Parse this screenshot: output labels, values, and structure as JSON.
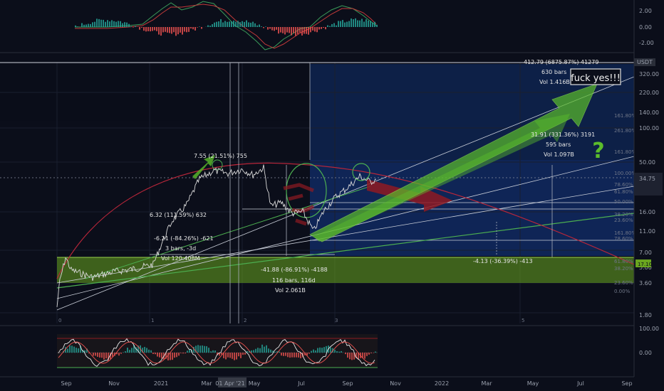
{
  "chart_data": {
    "type": "line",
    "price_axis": {
      "scale": "log",
      "ticks": [
        "320.00",
        "220.00",
        "140.00",
        "100.00",
        "50.00",
        "32.00",
        "16.00",
        "11.00",
        "7.00",
        "5.00",
        "3.60",
        "1.80"
      ]
    },
    "osc_top_axis": {
      "ticks": [
        "2.00",
        "0.00",
        "-2.00"
      ]
    },
    "osc_bottom_axis": {
      "ticks": [
        "100.00",
        "0.00"
      ]
    },
    "time_axis": {
      "ticks": [
        "Sep",
        "Nov",
        "2021",
        "Mar",
        "01 Apr '21",
        "May",
        "Jul",
        "Sep",
        "Nov",
        "2022",
        "Mar",
        "May",
        "Jul",
        "Sep"
      ],
      "highlight": "01 Apr '21"
    },
    "bar_index_labels": [
      "0",
      "1",
      "2",
      "3",
      "5"
    ],
    "fib_levels": [
      "161.80%",
      "261.80%",
      "161.80%",
      "100.00%",
      "78.60%",
      "61.80%",
      "50.00%",
      "38.20%",
      "23.60%",
      "161.80%",
      "78.60%",
      "61.80%",
      "38.20%",
      "23.60%",
      "0.00%"
    ],
    "price_labels": [
      "17.10",
      "USDT",
      "34.75"
    ],
    "measurements": [
      {
        "range": "7.55 (21.51%) 755"
      },
      {
        "range": "6.32 (111.59%) 632"
      },
      {
        "range": "-6.21 (-84.26%) -621",
        "bars": "3 bars, -3d",
        "vol": "Vol 120.408M"
      },
      {
        "range": "-41.88 (-86.91%) -4188",
        "bars": "116 bars, 116d",
        "vol": "Vol 2.061B"
      },
      {
        "range": "-4.13 (-36.39%) -413"
      },
      {
        "range": "31.91 (331.36%) 3191",
        "bars": "595 bars",
        "vol": "Vol 1.097B"
      },
      {
        "range": "412.79 (6875.87%) 41279",
        "bars": "630 bars",
        "vol": "Vol 1.416B"
      }
    ],
    "annotations": {
      "callout": "fuck yes!!!",
      "question": "?"
    },
    "colors": {
      "background": "#0b0e1a",
      "projection_box": "#0e2350",
      "support_zone": "#6aa51f",
      "arrow": "#5bbd2b",
      "red_arrow": "#b4202a",
      "arc": "#b8263a",
      "price": "#d9d9d9",
      "osc_green": "#26a69a",
      "osc_red": "#ef5350"
    }
  }
}
